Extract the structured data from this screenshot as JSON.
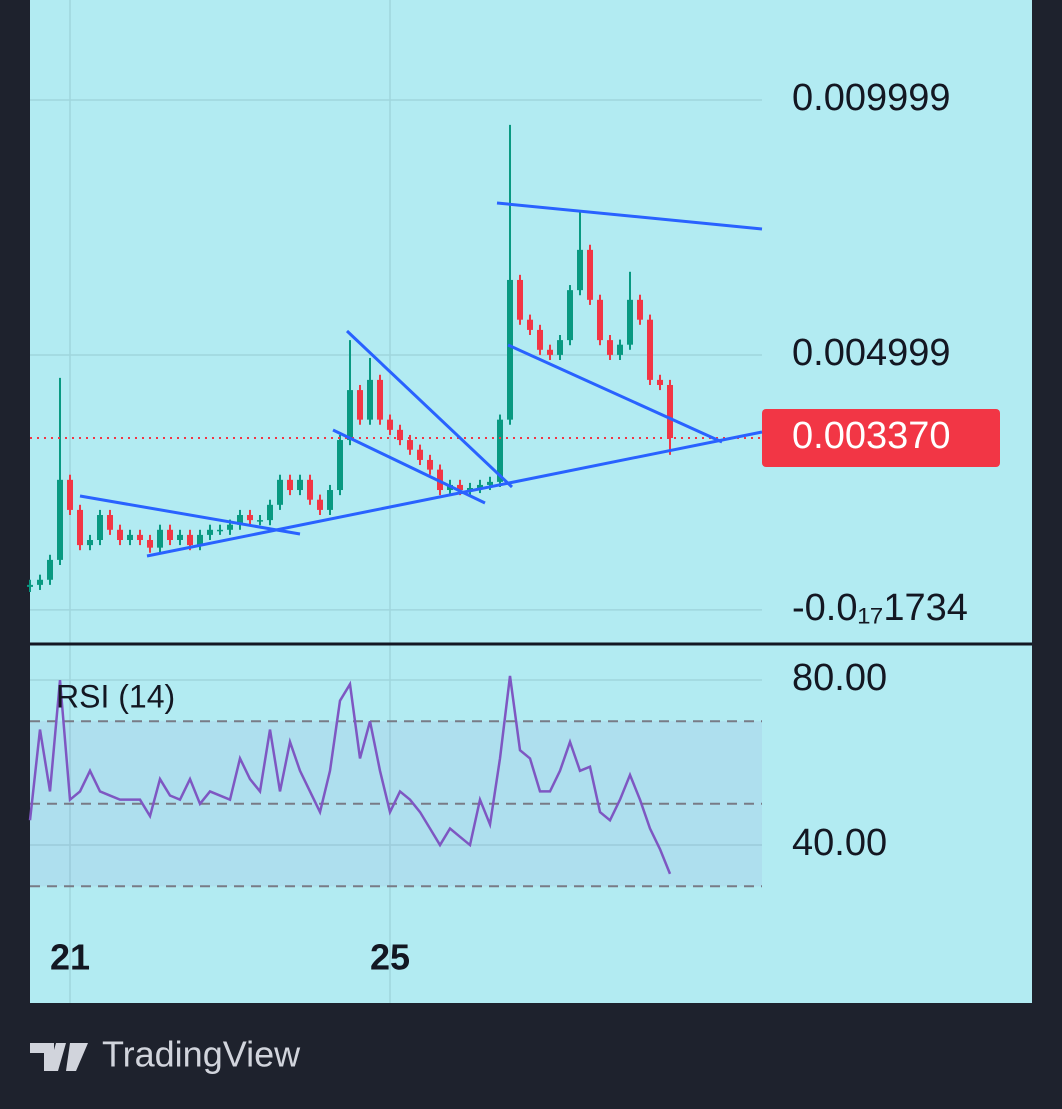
{
  "chart_data": [
    {
      "type": "candlestick",
      "x": [
        20.5,
        20.625,
        20.75,
        20.875,
        21,
        21.125,
        21.25,
        21.375,
        21.5,
        21.625,
        21.75,
        21.875,
        22,
        22.125,
        22.25,
        22.375,
        22.5,
        22.625,
        22.75,
        22.875,
        23,
        23.125,
        23.25,
        23.375,
        23.5,
        23.625,
        23.75,
        23.875,
        24,
        24.125,
        24.25,
        24.375,
        24.5,
        24.625,
        24.75,
        24.875,
        25,
        25.125,
        25.25,
        25.375,
        25.5,
        25.625,
        25.75,
        25.875,
        26,
        26.125,
        26.25,
        26.375,
        26.5,
        26.625,
        26.75,
        26.875,
        27,
        27.125,
        27.25,
        27.375,
        27.5,
        27.625,
        27.75,
        27.875,
        28,
        28.125,
        28.25,
        28.375,
        28.5
      ],
      "open": [
        0.00045,
        0.00049,
        0.00059,
        0.00098,
        0.00255,
        0.00196,
        0.00127,
        0.00137,
        0.00186,
        0.00157,
        0.00137,
        0.00147,
        0.00137,
        0.00122,
        0.00157,
        0.00137,
        0.00147,
        0.00127,
        0.00147,
        0.00157,
        0.00157,
        0.00167,
        0.00186,
        0.00176,
        0.00176,
        0.00206,
        0.00255,
        0.00235,
        0.00255,
        0.00216,
        0.00196,
        0.00235,
        0.00333,
        0.00431,
        0.00373,
        0.00451,
        0.00373,
        0.00353,
        0.00333,
        0.00314,
        0.00294,
        0.00275,
        0.00235,
        0.00245,
        0.00235,
        0.00239,
        0.00245,
        0.00251,
        0.00373,
        0.00647,
        0.00569,
        0.00549,
        0.0051,
        0.005,
        0.00529,
        0.00627,
        0.00706,
        0.00608,
        0.00529,
        0.005,
        0.0052,
        0.00608,
        0.00569,
        0.00451,
        0.00441
      ],
      "high": [
        0.00059,
        0.00069,
        0.00108,
        0.00455,
        0.00265,
        0.00206,
        0.00147,
        0.00196,
        0.00196,
        0.00167,
        0.00157,
        0.00157,
        0.00147,
        0.00167,
        0.00167,
        0.00157,
        0.00157,
        0.00157,
        0.00167,
        0.00167,
        0.00177,
        0.00196,
        0.00196,
        0.00186,
        0.00216,
        0.00265,
        0.00265,
        0.00265,
        0.00265,
        0.00226,
        0.00245,
        0.00343,
        0.00529,
        0.00441,
        0.00494,
        0.00461,
        0.00383,
        0.00363,
        0.00343,
        0.00324,
        0.00304,
        0.00285,
        0.00255,
        0.00255,
        0.00249,
        0.00255,
        0.00261,
        0.00383,
        0.00951,
        0.00657,
        0.00579,
        0.00559,
        0.0052,
        0.00539,
        0.00637,
        0.0078,
        0.00716,
        0.00618,
        0.00539,
        0.0053,
        0.00663,
        0.00618,
        0.00579,
        0.00461,
        0.00451
      ],
      "low": [
        0.00035,
        0.00039,
        0.00049,
        0.00088,
        0.00186,
        0.00117,
        0.00117,
        0.00127,
        0.00147,
        0.00127,
        0.00127,
        0.00127,
        0.00112,
        0.00112,
        0.00127,
        0.00127,
        0.00117,
        0.00117,
        0.00137,
        0.00147,
        0.00147,
        0.00157,
        0.00166,
        0.00166,
        0.00166,
        0.00196,
        0.00225,
        0.00225,
        0.00206,
        0.00186,
        0.00186,
        0.00225,
        0.00323,
        0.00363,
        0.00363,
        0.00363,
        0.00343,
        0.00323,
        0.00304,
        0.00284,
        0.00265,
        0.00225,
        0.00225,
        0.00225,
        0.00225,
        0.00229,
        0.00235,
        0.00241,
        0.00363,
        0.00559,
        0.00539,
        0.005,
        0.0049,
        0.0049,
        0.00519,
        0.00617,
        0.00598,
        0.00519,
        0.0049,
        0.0049,
        0.0051,
        0.00559,
        0.00441,
        0.00431,
        0.00304
      ],
      "close": [
        0.00049,
        0.00059,
        0.00098,
        0.00255,
        0.00196,
        0.00127,
        0.00137,
        0.00186,
        0.00157,
        0.00137,
        0.00147,
        0.00137,
        0.00122,
        0.00157,
        0.00137,
        0.00147,
        0.00127,
        0.00147,
        0.00157,
        0.00157,
        0.00167,
        0.00186,
        0.00176,
        0.00176,
        0.00206,
        0.00255,
        0.00235,
        0.00255,
        0.00216,
        0.00196,
        0.00235,
        0.00333,
        0.00431,
        0.00373,
        0.00451,
        0.00373,
        0.00353,
        0.00333,
        0.00314,
        0.00294,
        0.00275,
        0.00235,
        0.00245,
        0.00235,
        0.00239,
        0.00245,
        0.00251,
        0.00373,
        0.00647,
        0.00569,
        0.00549,
        0.0051,
        0.005,
        0.00529,
        0.00627,
        0.00706,
        0.00608,
        0.00529,
        0.005,
        0.0052,
        0.00608,
        0.00569,
        0.00451,
        0.00441,
        0.00337
      ],
      "up_color": "#089981",
      "down_color": "#f23645",
      "xlim": [
        20.5,
        29.65
      ],
      "xticks": [
        21,
        25
      ],
      "ylim": [
        -0.00065,
        0.01196
      ],
      "yticks": [
        {
          "value": -1.734e-20,
          "label": "-0.0₁₇1734"
        },
        0.004999,
        0.009999
      ],
      "last_price": {
        "value": 0.00337,
        "label": "0.003370"
      },
      "grid": true
    },
    {
      "type": "line",
      "title": "RSI (14)",
      "color": "#7e57c2",
      "x": [
        20.5,
        20.625,
        20.75,
        20.875,
        21,
        21.125,
        21.25,
        21.375,
        21.5,
        21.625,
        21.75,
        21.875,
        22,
        22.125,
        22.25,
        22.375,
        22.5,
        22.625,
        22.75,
        22.875,
        23,
        23.125,
        23.25,
        23.375,
        23.5,
        23.625,
        23.75,
        23.875,
        24,
        24.125,
        24.25,
        24.375,
        24.5,
        24.625,
        24.75,
        24.875,
        25,
        25.125,
        25.25,
        25.375,
        25.5,
        25.625,
        25.75,
        25.875,
        26,
        26.125,
        26.25,
        26.375,
        26.5,
        26.625,
        26.75,
        26.875,
        27,
        27.125,
        27.25,
        27.375,
        27.5,
        27.625,
        27.75,
        27.875,
        28,
        28.125,
        28.25,
        28.375,
        28.5
      ],
      "values": [
        46,
        68,
        53,
        80,
        51,
        53,
        58,
        53,
        52,
        51,
        51,
        51,
        47,
        56,
        52,
        51,
        56,
        50,
        53,
        52,
        51,
        61,
        56,
        53,
        68,
        53,
        65,
        58,
        53,
        48,
        58,
        75,
        79,
        61,
        70,
        58,
        48,
        53,
        51,
        48,
        44,
        40,
        44,
        42,
        40,
        51,
        45,
        61,
        81,
        63,
        61,
        53,
        53,
        58,
        65,
        58,
        59,
        48,
        46,
        51,
        57,
        51,
        44,
        39,
        33
      ],
      "xlim": [
        20.5,
        29.65
      ],
      "xticks": [
        21,
        25
      ],
      "ylim": [
        1.7,
        88.5
      ],
      "yticks": [
        {
          "value": 40,
          "label": "40.00"
        },
        {
          "value": 80,
          "label": "80.00"
        }
      ],
      "levels": [
        30,
        50,
        70
      ],
      "grid": true
    }
  ],
  "footer": {
    "brand": "TradingView"
  }
}
